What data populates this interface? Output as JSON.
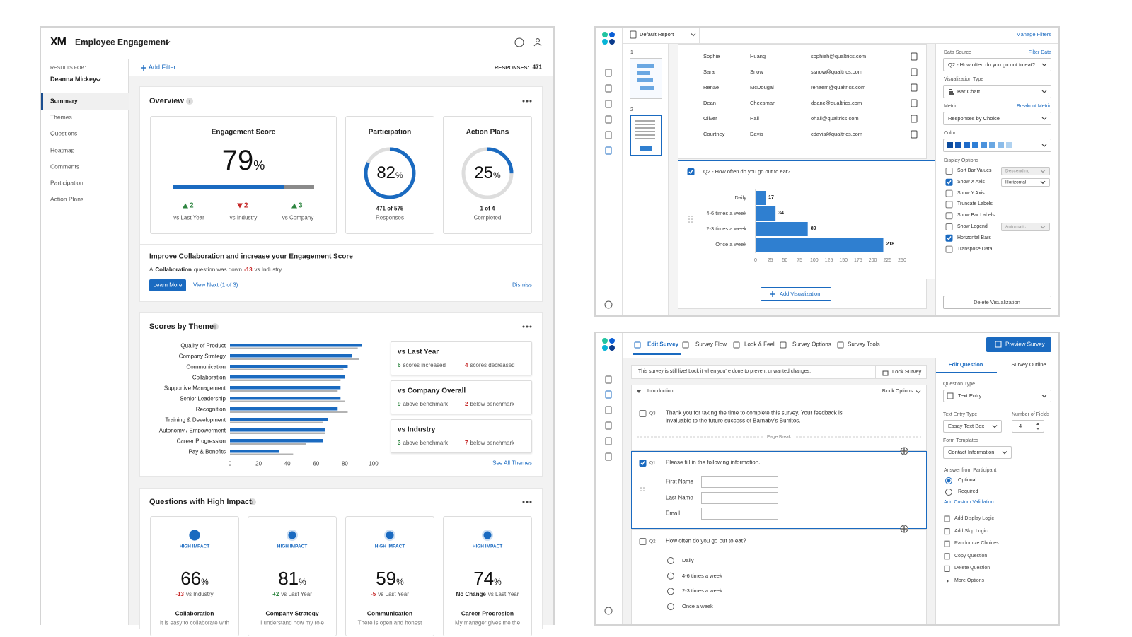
{
  "dashboard": {
    "logo": "XM",
    "title": "Employee Engagement",
    "results_for_label": "RESULTS FOR:",
    "results_for": "Deanna Mickey",
    "nav": {
      "items": [
        "Summary",
        "Themes",
        "Questions",
        "Heatmap",
        "Comments",
        "Participation",
        "Action Plans"
      ],
      "active": 0
    },
    "add_filter": "Add Filter",
    "responses_label": "RESPONSES:",
    "responses": 471,
    "overview": {
      "title": "Overview",
      "engagement": {
        "title": "Engagement Score",
        "value": 79,
        "unit": "%",
        "color": "#1a6ac0",
        "comparisons": [
          {
            "direction": "up",
            "value": 2,
            "label": "vs Last Year"
          },
          {
            "direction": "down",
            "value": 2,
            "label": "vs Industry"
          },
          {
            "direction": "up",
            "value": 3,
            "label": "vs Company"
          }
        ]
      },
      "participation": {
        "title": "Participation",
        "value": 82,
        "unit": "%",
        "count": "471 of 575",
        "caption": "Responses",
        "color": "#1a6ac0"
      },
      "action_plans": {
        "title": "Action Plans",
        "value": 25,
        "unit": "%",
        "count": "1 of 4",
        "caption": "Completed",
        "color": "#1a6ac0"
      }
    },
    "insight": {
      "title": "Improve Collaboration and increase your Engagement Score",
      "parts": [
        {
          "text": "A",
          "style": "plain"
        },
        {
          "text": "Collaboration",
          "style": "bold"
        },
        {
          "text": "question was down",
          "style": "plain"
        },
        {
          "text": "-13",
          "style": "red"
        },
        {
          "text": "vs Industry.",
          "style": "plain"
        }
      ],
      "learn_more": "Learn More",
      "view_next": "View Next (1 of 3)",
      "dismiss": "Dismiss"
    },
    "scores_by_theme": {
      "title": "Scores by Theme",
      "chart_data": {
        "type": "bar",
        "orientation": "horizontal",
        "categories": [
          "Quality of Product",
          "Company Strategy",
          "Communication",
          "Collaboration",
          "Supportive Management",
          "Senior Leadership",
          "Recognition",
          "Training & Development",
          "Autonomy / Empowerment",
          "Career Progression",
          "Pay & Benefits"
        ],
        "series": [
          {
            "color": "#1a6ac0",
            "values": [
              92,
              85,
              82,
              80,
              77,
              77,
              75,
              68,
              66,
              65,
              34
            ]
          },
          {
            "color": "#b3b3b3",
            "values": [
              89,
              90,
              79,
              77,
              75,
              80,
              82,
              65,
              66,
              53,
              44
            ]
          }
        ],
        "xlim": [
          0,
          100
        ],
        "xticks": [
          0,
          20,
          40,
          60,
          80,
          100
        ]
      },
      "comparisons": [
        {
          "title": "vs Last Year",
          "up": {
            "value": 6,
            "text": "scores increased"
          },
          "down": {
            "value": 4,
            "text": "scores decreased"
          }
        },
        {
          "title": "vs Company Overall",
          "up": {
            "value": 9,
            "text": "above benchmark"
          },
          "down": {
            "value": 2,
            "text": "below benchmark"
          }
        },
        {
          "title": "vs Industry",
          "up": {
            "value": 3,
            "text": "above benchmark"
          },
          "down": {
            "value": 7,
            "text": "below benchmark"
          }
        }
      ],
      "see_all": "See All Themes"
    },
    "high_impact": {
      "title": "Questions with High Impact",
      "cards": [
        {
          "badge": "HIGH IMPACT",
          "value": 66,
          "unit": "%",
          "delta": "-13",
          "tone": "negative",
          "delta_text": "vs Industry",
          "name": "Collaboration",
          "desc": "It is easy to collaborate with"
        },
        {
          "badge": "HIGH IMPACT",
          "value": 81,
          "unit": "%",
          "delta": "+2",
          "tone": "positive",
          "delta_text": "vs Last Year",
          "name": "Company Strategy",
          "desc": "I understand how my role"
        },
        {
          "badge": "HIGH IMPACT",
          "value": 59,
          "unit": "%",
          "delta": "-5",
          "tone": "negative",
          "delta_text": "vs Last Year",
          "name": "Communication",
          "desc": "There is open and honest"
        },
        {
          "badge": "HIGH IMPACT",
          "value": 74,
          "unit": "%",
          "delta": "No Change",
          "tone": "neutral",
          "delta_text": "vs Last Year",
          "name": "Career Progresion",
          "desc": "My manager gives me the"
        }
      ]
    }
  },
  "report": {
    "report_name": "Default Report",
    "manage_filters": "Manage Filters",
    "pages": [
      "1",
      "2"
    ],
    "responses_table": [
      [
        "Sophie",
        "Huang",
        "sophieh@qualtrics.com"
      ],
      [
        "Sara",
        "Snow",
        "ssnow@qualtrics.com"
      ],
      [
        "Renae",
        "McDougal",
        "renaem@qualtrics.com"
      ],
      [
        "Dean",
        "Cheesman",
        "deanc@qualtrics.com"
      ],
      [
        "Oliver",
        "Hall",
        "ohall@qualtrics.com"
      ],
      [
        "Courtney",
        "Davis",
        "cdavis@qualtrics.com"
      ]
    ],
    "chart_data": {
      "type": "bar",
      "orientation": "horizontal",
      "title": "Q2 - How often do you go out to eat?",
      "categories": [
        "Daily",
        "4-6 times a week",
        "2-3 times a week",
        "Once a week"
      ],
      "values": [
        17,
        34,
        89,
        218
      ],
      "color": "#2f7fd0",
      "xlim": [
        0,
        250
      ],
      "xticks": [
        0,
        25,
        50,
        75,
        100,
        125,
        150,
        175,
        200,
        225,
        250
      ]
    },
    "add_visualization": "Add Visualization",
    "sidebar": {
      "data_source_label": "Data Source",
      "filter_data": "Filter Data",
      "data_source": "Q2 - How often do you go out to eat?",
      "visualization_type_label": "Visualization Type",
      "visualization_type": "Bar Chart",
      "metric_label": "Metric",
      "breakout_metric": "Breakout Metric",
      "metric": "Responses by Choice",
      "color_label": "Color",
      "colors": [
        "#0b4a9c",
        "#1559b5",
        "#1f6bc9",
        "#2f7fd6",
        "#4b92dc",
        "#6aa7e2",
        "#8cbce9",
        "#b0d2f0"
      ],
      "display_options_label": "Display Options",
      "display_options": [
        {
          "label": "Sort Bar Values",
          "checked": false,
          "dropdown": "Descending",
          "enabled": false
        },
        {
          "label": "Show X Axis",
          "checked": true,
          "dropdown": "Horizontal",
          "enabled": true
        },
        {
          "label": "Show Y Axis",
          "checked": false
        },
        {
          "label": "Truncate Labels",
          "checked": false
        },
        {
          "label": "Show Bar Labels",
          "checked": false
        },
        {
          "label": "Show Legend",
          "checked": false,
          "dropdown": "Automatic",
          "enabled": false
        },
        {
          "label": "Horizontal Bars",
          "checked": true
        },
        {
          "label": "Transpose Data",
          "checked": false
        }
      ],
      "delete_visualization": "Delete Visualization"
    }
  },
  "survey": {
    "tabs": [
      "Edit Survey",
      "Survey Flow",
      "Look & Feel",
      "Survey Options",
      "Survey Tools"
    ],
    "active_tab": 0,
    "preview": "Preview Survey",
    "notice": "This survey is still live! Lock it when you're done to prevent unwanted changes.",
    "lock": "Lock Survey",
    "block": {
      "name": "Introduction",
      "options": "Block Options"
    },
    "q3": {
      "id": "Q3",
      "text": [
        "Thank you for taking the time to complete this survey. Your feedback is",
        "invaluable to the future success of Barnaby's Burritos."
      ]
    },
    "page_break": "Page Break",
    "q1": {
      "id": "Q1",
      "text": "Please fill in the following information.",
      "fields": [
        "First Name",
        "Last Name",
        "Email"
      ]
    },
    "q2": {
      "id": "Q2",
      "text": "How often do you go out to eat?",
      "choices": [
        "Daily",
        "4-6 times a week",
        "2-3 times a week",
        "Once a week"
      ]
    },
    "editor": {
      "tabs": [
        "Edit Question",
        "Survey Outline"
      ],
      "question_type_label": "Question Type",
      "question_type": "Text Entry",
      "text_entry_type_label": "Text Entry Type",
      "text_entry_type": "Essay Text Box",
      "number_of_fields_label": "Number of Fields",
      "number_of_fields": 4,
      "form_templates_label": "Form Templates",
      "form_template": "Contact Information",
      "answer_label": "Answer from Participant",
      "answer_options": [
        "Optional",
        "Required"
      ],
      "answer_selected": 0,
      "custom_validation": "Add Custom Validation",
      "actions": [
        "Add Display Logic",
        "Add Skip Logic",
        "Randomize Choices",
        "Copy Question",
        "Delete Question",
        "More Options"
      ]
    }
  }
}
